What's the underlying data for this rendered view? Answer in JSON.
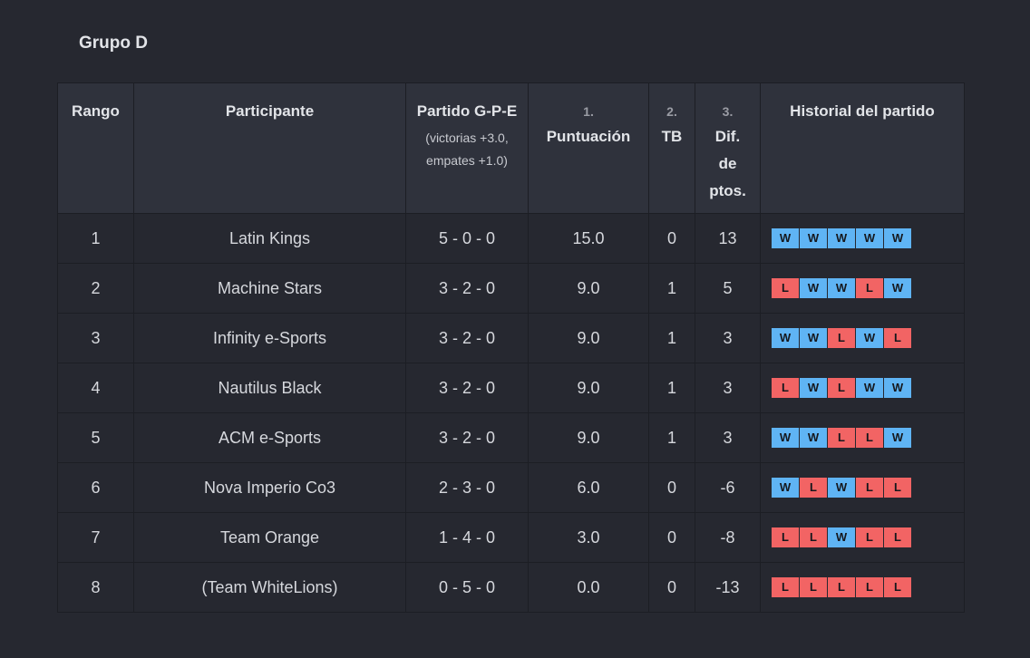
{
  "group": {
    "title": "Grupo D"
  },
  "headers": {
    "rank": "Rango",
    "participant": "Participante",
    "match_title": "Partido G-P-E",
    "match_sub1": "(victorias +3.0,",
    "match_sub2": "empates +1.0)",
    "score_num": "1.",
    "score_label": "Puntuación",
    "tb_num": "2.",
    "tb_label": "TB",
    "diff_num": "3.",
    "diff_label": "Dif. de ptos.",
    "history": "Historial del partido"
  },
  "rows": [
    {
      "rank": "1",
      "participant": "Latin Kings",
      "record": "5 - 0 - 0",
      "score": "15.0",
      "tb": "0",
      "diff": "13",
      "history": [
        "W",
        "W",
        "W",
        "W",
        "W"
      ]
    },
    {
      "rank": "2",
      "participant": "Machine Stars",
      "record": "3 - 2 - 0",
      "score": "9.0",
      "tb": "1",
      "diff": "5",
      "history": [
        "L",
        "W",
        "W",
        "L",
        "W"
      ]
    },
    {
      "rank": "3",
      "participant": "Infinity e-Sports",
      "record": "3 - 2 - 0",
      "score": "9.0",
      "tb": "1",
      "diff": "3",
      "history": [
        "W",
        "W",
        "L",
        "W",
        "L"
      ]
    },
    {
      "rank": "4",
      "participant": "Nautilus Black",
      "record": "3 - 2 - 0",
      "score": "9.0",
      "tb": "1",
      "diff": "3",
      "history": [
        "L",
        "W",
        "L",
        "W",
        "W"
      ]
    },
    {
      "rank": "5",
      "participant": "ACM e-Sports",
      "record": "3 - 2 - 0",
      "score": "9.0",
      "tb": "1",
      "diff": "3",
      "history": [
        "W",
        "W",
        "L",
        "L",
        "W"
      ]
    },
    {
      "rank": "6",
      "participant": "Nova Imperio Co3",
      "record": "2 - 3 - 0",
      "score": "6.0",
      "tb": "0",
      "diff": "-6",
      "history": [
        "W",
        "L",
        "W",
        "L",
        "L"
      ]
    },
    {
      "rank": "7",
      "participant": "Team Orange",
      "record": "1 - 4 - 0",
      "score": "3.0",
      "tb": "0",
      "diff": "-8",
      "history": [
        "L",
        "L",
        "W",
        "L",
        "L"
      ]
    },
    {
      "rank": "8",
      "participant": "(Team WhiteLions)",
      "record": "0 - 5 - 0",
      "score": "0.0",
      "tb": "0",
      "diff": "-13",
      "history": [
        "L",
        "L",
        "L",
        "L",
        "L"
      ]
    }
  ],
  "colors": {
    "win": "#5fb4f4",
    "loss": "#f26464",
    "background": "#262830",
    "header_bg": "#2f323c"
  }
}
